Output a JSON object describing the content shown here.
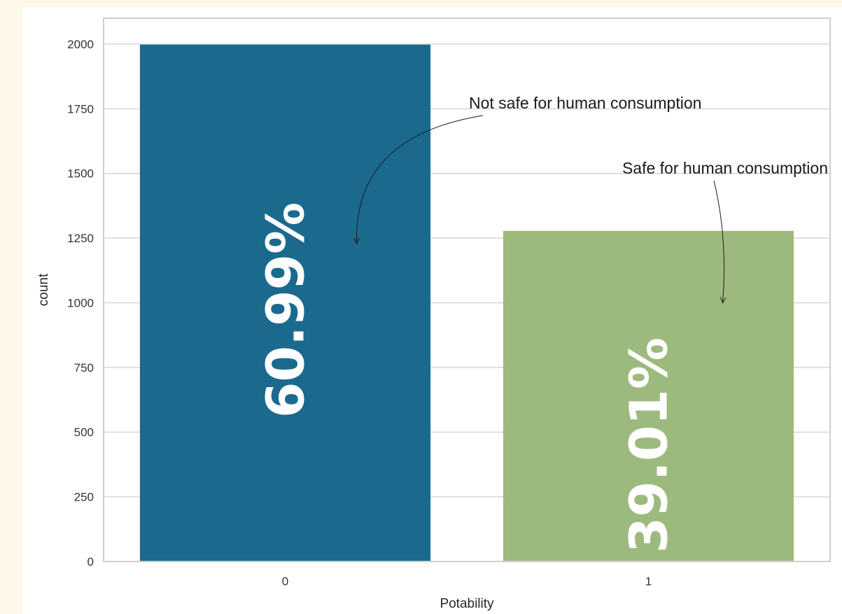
{
  "chart_data": {
    "type": "bar",
    "categories": [
      "0",
      "1"
    ],
    "values": [
      1998,
      1278
    ],
    "bar_labels": [
      "60.99%",
      "39.01%"
    ],
    "colors": [
      "#1b6a8e",
      "#9dba7e"
    ],
    "xlabel": "Potability",
    "ylabel": "count",
    "ylim": [
      0,
      2100
    ],
    "yticks": [
      0,
      250,
      500,
      750,
      1000,
      1250,
      1500,
      1750,
      2000
    ],
    "grid": true,
    "annotations": [
      {
        "text": "Not safe for human consumption",
        "target_category": "0",
        "target_value": 1250
      },
      {
        "text": "Safe for human consumption",
        "target_category": "1",
        "target_value": 1000
      }
    ]
  }
}
